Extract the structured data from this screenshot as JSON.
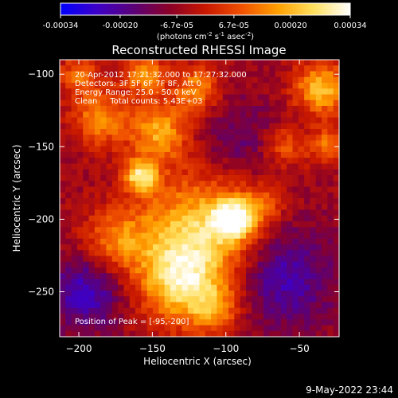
{
  "chart_data": {
    "type": "heatmap",
    "title": "Reconstructed RHESSI Image",
    "xlabel": "Heliocentric X (arcsec)",
    "ylabel": "Heliocentric Y (arcsec)",
    "xlim": [
      -213,
      -23
    ],
    "ylim": [
      -281,
      -90
    ],
    "x_ticks": [
      -200,
      -150,
      -100,
      -50
    ],
    "y_ticks": [
      -100,
      -150,
      -200,
      -250
    ],
    "colorbar": {
      "ticks": [
        -0.00034,
        -0.0002,
        -6.7e-05,
        6.7e-05,
        0.0002,
        0.00034
      ],
      "tick_labels": [
        "-0.00034",
        "-0.00020",
        "-6.7e-05",
        "6.7e-05",
        "0.00020",
        "0.00034"
      ],
      "unit_text": "(photons cm",
      "unit_sup1": "-2",
      "unit_mid1": " s",
      "unit_sup2": "-1",
      "unit_mid2": " asec",
      "unit_sup3": "-2",
      "unit_end": ")",
      "colors": [
        "#0000ff",
        "#3d00c8",
        "#5a0078",
        "#8a0028",
        "#c81800",
        "#f05000",
        "#ffa000",
        "#ffe060",
        "#ffffff"
      ]
    },
    "annotations": [
      "20-Apr-2012 17:21:32.000 to 17:27:32.000",
      "Detectors: 3F 5F 6F 7F 8F, Att 0",
      "Energy Range: 25.0 - 50.0 keV",
      "Clean     Total counts: 5.43E+03"
    ],
    "peak_label": "Position of Peak = [-95,-200]",
    "sources": [
      {
        "x": -95,
        "y": -200,
        "amp": 1.0,
        "sigma": 10
      },
      {
        "x": -158,
        "y": -170,
        "amp": 0.95,
        "sigma": 8
      },
      {
        "x": -120,
        "y": -210,
        "amp": 0.85,
        "sigma": 28
      },
      {
        "x": -132,
        "y": -245,
        "amp": 0.7,
        "sigma": 20
      },
      {
        "x": -108,
        "y": -262,
        "amp": 0.5,
        "sigma": 12
      },
      {
        "x": -175,
        "y": -215,
        "amp": 0.5,
        "sigma": 16
      },
      {
        "x": -145,
        "y": -140,
        "amp": 0.7,
        "sigma": 14
      },
      {
        "x": -185,
        "y": -130,
        "amp": 0.6,
        "sigma": 14
      },
      {
        "x": -120,
        "y": -110,
        "amp": 0.6,
        "sigma": 11
      },
      {
        "x": -155,
        "y": -100,
        "amp": 0.65,
        "sigma": 10
      },
      {
        "x": -60,
        "y": -150,
        "amp": 0.45,
        "sigma": 10
      },
      {
        "x": -75,
        "y": -190,
        "amp": 0.4,
        "sigma": 10
      },
      {
        "x": -35,
        "y": -110,
        "amp": 0.8,
        "sigma": 13
      },
      {
        "x": -30,
        "y": -150,
        "amp": 0.55,
        "sigma": 9
      },
      {
        "x": -200,
        "y": -100,
        "amp": 0.45,
        "sigma": 10
      }
    ],
    "background": {
      "base": -0.18,
      "low_regions": [
        {
          "x": -195,
          "y": -250,
          "amp": -0.55,
          "sigma": 18
        },
        {
          "x": -60,
          "y": -240,
          "amp": -0.5,
          "sigma": 24
        },
        {
          "x": -90,
          "y": -145,
          "amp": -0.25,
          "sigma": 20
        }
      ]
    }
  },
  "footer_timestamp": "9-May-2022 23:44"
}
